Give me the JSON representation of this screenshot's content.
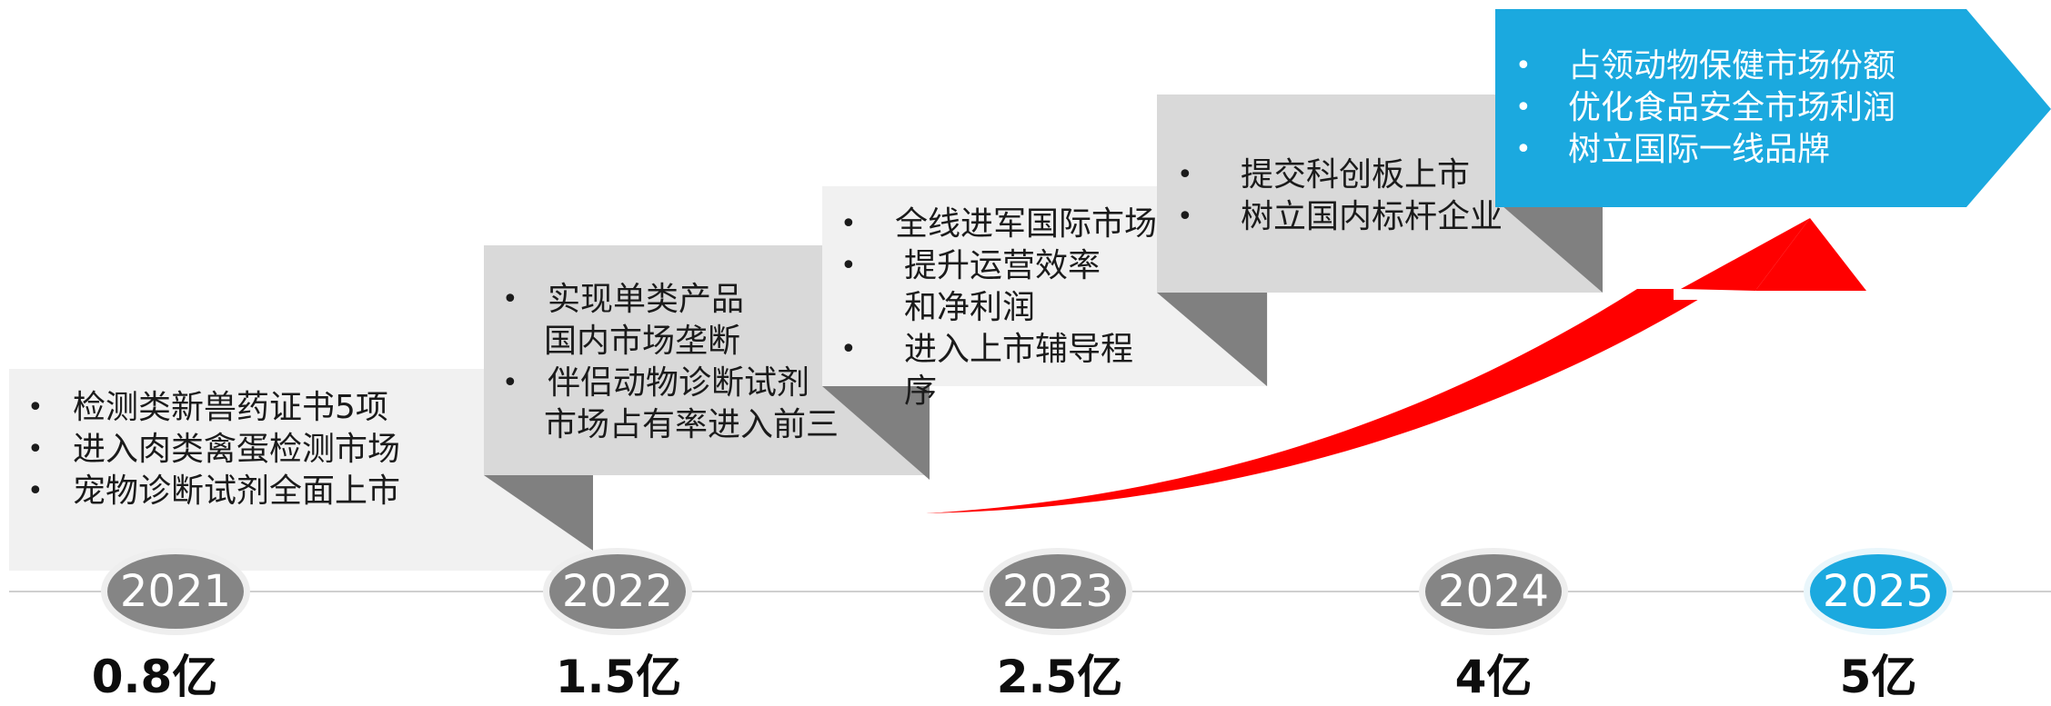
{
  "colors": {
    "box_light": "#f1f1f1",
    "box_mid": "#d9d9d9",
    "fold": "#808080",
    "accent_blue": "#1ba9df",
    "arrow_red": "#ff0000",
    "timeline": "#cfcfcf"
  },
  "milestones": [
    {
      "year": "2021",
      "revenue": "0.8亿",
      "items": [
        "检测类新兽药证书5项",
        "进入肉类禽蛋检测市场",
        "宠物诊断试剂全面上市"
      ]
    },
    {
      "year": "2022",
      "revenue": "1.5亿",
      "items": [
        "实现单类产品",
        "国内市场垄断",
        "伴侣动物诊断试剂",
        "市场占有率进入前三"
      ]
    },
    {
      "year": "2023",
      "revenue": "2.5亿",
      "items": [
        "全线进军国际市场",
        "提升运营效率",
        "和净利润",
        "进入上市辅导程序"
      ]
    },
    {
      "year": "2024",
      "revenue": "4亿",
      "items": [
        "提交科创板上市",
        "树立国内标杆企业"
      ]
    },
    {
      "year": "2025",
      "revenue": "5亿",
      "items": [
        "占领动物保健市场份额",
        "优化食品安全市场利润",
        "树立国际一线品牌"
      ]
    }
  ]
}
